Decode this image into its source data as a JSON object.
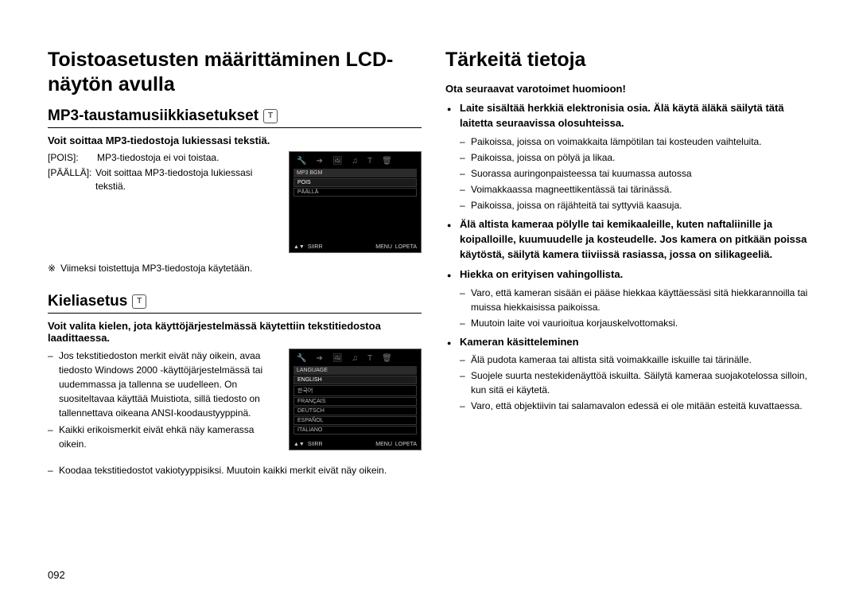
{
  "page_number": "092",
  "left": {
    "main_heading": "Toistoasetusten määrittäminen LCD-näytön avulla",
    "mp3": {
      "heading": "MP3-taustamusiikkiasetukset",
      "intro": "Voit soittaa MP3-tiedostoja lukiessasi tekstiä.",
      "rows": [
        {
          "key": "[POIS]:",
          "val": "MP3-tiedostoja ei voi toistaa."
        },
        {
          "key": "[PÄÄLLÄ]:",
          "val": "Voit soittaa MP3-tiedostoja lukiessasi tekstiä."
        }
      ],
      "note_symbol": "※",
      "note": "Viimeksi toistettuja MP3-tiedostoja käytetään.",
      "lcd": {
        "title": "MP3 BGM",
        "options": [
          "POIS",
          "PÄÄLLÄ"
        ],
        "footer_move": "SIIRR",
        "footer_menu": "MENU",
        "footer_exit": "LOPETA"
      }
    },
    "lang": {
      "heading": "Kieliasetus",
      "intro": "Voit valita kielen, jota käyttöjärjestelmässä käytettiin tekstitiedostoa laadittaessa.",
      "bullets": [
        "Jos tekstitiedoston merkit eivät näy oikein, avaa tiedosto Windows 2000 -käyttöjärjestelmässä tai uudemmassa ja tallenna se uudelleen. On suositeltavaa käyttää Muistiota, sillä tiedosto on tallennettava oikeana ANSI-koodaustyyppinä.",
        "Kaikki erikoismerkit eivät ehkä näy kamerassa oikein.",
        "Koodaa tekstitiedostot vakiotyyppisiksi. Muutoin kaikki merkit eivät näy oikein."
      ],
      "lcd": {
        "title": "LANGUAGE",
        "options": [
          "ENGLISH",
          "한국어",
          "FRANÇAIS",
          "DEUTSCH",
          "ESPAÑOL",
          "ITALIANO"
        ],
        "footer_move": "SIIRR",
        "footer_menu": "MENU",
        "footer_exit": "LOPETA"
      }
    }
  },
  "right": {
    "main_heading": "Tärkeitä tietoja",
    "intro": "Ota seuraavat varotoimet huomioon!",
    "items": [
      {
        "head": "Laite sisältää herkkiä elektronisia osia. Älä käytä äläkä säilytä tätä laitetta seuraavissa olosuhteissa.",
        "subs": [
          "Paikoissa, joissa on voimakkaita lämpötilan tai kosteuden vaihteluita.",
          "Paikoissa, joissa on pölyä ja likaa.",
          "Suorassa auringonpaisteessa tai kuumassa autossa",
          "Voimakkaassa magneettikentässä tai tärinässä.",
          "Paikoissa, joissa on räjähteitä tai syttyviä kaasuja."
        ]
      },
      {
        "head": "Älä altista kameraa pölylle tai kemikaaleille, kuten naftaliinille ja koipalloille, kuumuudelle ja kosteudelle. Jos kamera on pitkään poissa käytöstä, säilytä kamera tiiviissä rasiassa, jossa on silikageeliä.",
        "subs": []
      },
      {
        "head": "Hiekka on erityisen vahingollista.",
        "subs": [
          "Varo, että kameran sisään ei pääse hiekkaa käyttäessäsi sitä hiekkarannoilla tai muissa hiekkaisissa paikoissa.",
          "Muutoin laite voi vaurioitua korjauskelvottomaksi."
        ]
      },
      {
        "head": "Kameran käsitteleminen",
        "subs": [
          "Älä pudota kameraa tai altista sitä voimakkaille iskuille tai tärinälle.",
          "Suojele suurta nestekidenäyttöä iskuilta. Säilytä kameraa suojakotelossa silloin, kun sitä ei käytetä.",
          "Varo, että objektiivin tai salamavalon edessä ei ole mitään esteitä kuvattaessa."
        ]
      }
    ]
  },
  "icons": {
    "lcd_tabs": [
      "🔧",
      "➔",
      "🖼",
      "♫",
      "T",
      "🗑"
    ]
  }
}
